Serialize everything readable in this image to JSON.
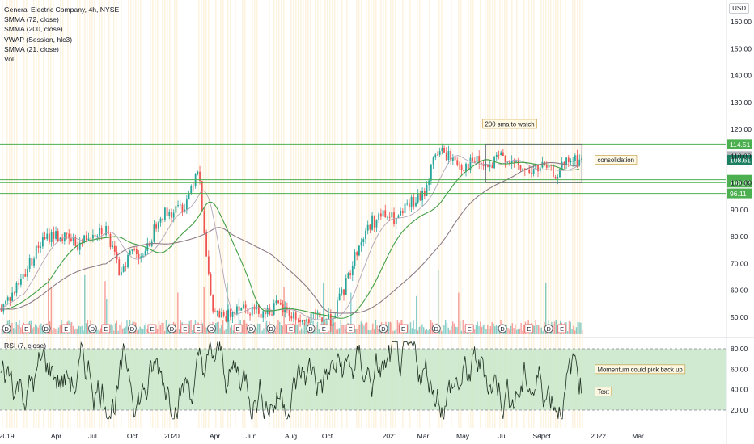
{
  "header": {
    "legend": [
      "General Electric Company, 4h, NYSE",
      "SMMA (72, close)",
      "SMMA (200, close)",
      "VWAP (Session, hlc3)",
      "SMMA (21, close)",
      "Vol"
    ],
    "rsi_label": "RSI (7, close)",
    "currency": "USD"
  },
  "colors": {
    "up": "#26a69a",
    "down": "#ef5350",
    "smma72": "#43a047",
    "smma200": "#8d7b86",
    "vwap": "#b2a4b8",
    "level": "#4caf50",
    "rsi_line": "#1b2e1d",
    "rsi_band": "#c8e6c9",
    "bar_tint": "#fbe9c9"
  },
  "chart_data": {
    "type": "candlestick",
    "symbol": "General Electric Company",
    "interval": "4h",
    "exchange": "NYSE",
    "x_ticks": [
      "2019",
      "Apr",
      "Jul",
      "Oct",
      "2020",
      "Apr",
      "Jun",
      "Aug",
      "Oct",
      "2021",
      "Mar",
      "May",
      "Jul",
      "Sep",
      "Oct",
      "2022",
      "Mar"
    ],
    "y_ticks": [
      "160.00",
      "150.00",
      "140.00",
      "130.00",
      "120.00",
      "110.00",
      "100.00",
      "90.00",
      "80.00",
      "70.00",
      "60.00",
      "50.00"
    ],
    "y_range": [
      46,
      163
    ],
    "price_path": [
      {
        "x": 0,
        "y": 53
      },
      {
        "x": 0.02,
        "y": 59
      },
      {
        "x": 0.04,
        "y": 68
      },
      {
        "x": 0.06,
        "y": 77
      },
      {
        "x": 0.08,
        "y": 81
      },
      {
        "x": 0.1,
        "y": 79
      },
      {
        "x": 0.12,
        "y": 77
      },
      {
        "x": 0.14,
        "y": 82
      },
      {
        "x": 0.16,
        "y": 83
      },
      {
        "x": 0.18,
        "y": 67
      },
      {
        "x": 0.2,
        "y": 75
      },
      {
        "x": 0.22,
        "y": 73
      },
      {
        "x": 0.24,
        "y": 88
      },
      {
        "x": 0.26,
        "y": 89
      },
      {
        "x": 0.28,
        "y": 92
      },
      {
        "x": 0.3,
        "y": 107
      },
      {
        "x": 0.32,
        "y": 53
      },
      {
        "x": 0.34,
        "y": 49
      },
      {
        "x": 0.36,
        "y": 55
      },
      {
        "x": 0.38,
        "y": 53
      },
      {
        "x": 0.4,
        "y": 52
      },
      {
        "x": 0.42,
        "y": 54
      },
      {
        "x": 0.44,
        "y": 51
      },
      {
        "x": 0.46,
        "y": 48
      },
      {
        "x": 0.48,
        "y": 50
      },
      {
        "x": 0.5,
        "y": 49
      },
      {
        "x": 0.52,
        "y": 60
      },
      {
        "x": 0.54,
        "y": 75
      },
      {
        "x": 0.56,
        "y": 85
      },
      {
        "x": 0.58,
        "y": 88
      },
      {
        "x": 0.6,
        "y": 86
      },
      {
        "x": 0.62,
        "y": 92
      },
      {
        "x": 0.64,
        "y": 95
      },
      {
        "x": 0.66,
        "y": 112
      },
      {
        "x": 0.68,
        "y": 110
      },
      {
        "x": 0.7,
        "y": 106
      },
      {
        "x": 0.72,
        "y": 108
      },
      {
        "x": 0.74,
        "y": 105
      },
      {
        "x": 0.76,
        "y": 111
      },
      {
        "x": 0.78,
        "y": 106
      },
      {
        "x": 0.8,
        "y": 104
      },
      {
        "x": 0.82,
        "y": 106
      },
      {
        "x": 0.84,
        "y": 103
      },
      {
        "x": 0.86,
        "y": 108
      },
      {
        "x": 0.88,
        "y": 108.61
      }
    ],
    "horizontal_levels": [
      {
        "value": 114.51,
        "label": "114.51"
      },
      {
        "value": 101.19,
        "label": "101.19"
      },
      {
        "value": 100.12,
        "label": "100.12"
      },
      {
        "value": 96.11,
        "label": "96.11"
      }
    ],
    "last_price": {
      "value": 108.61,
      "label": "108.61"
    },
    "hidden_price_label": "110.00",
    "annotations": [
      {
        "text": "200 sma to watch",
        "x": 0.73,
        "y": 122
      },
      {
        "text": "consolidation",
        "x": 0.9,
        "y": 108.6
      }
    ],
    "event_markers": [
      {
        "x": 0.01,
        "t": "D"
      },
      {
        "x": 0.04,
        "t": "E"
      },
      {
        "x": 0.07,
        "t": "D"
      },
      {
        "x": 0.1,
        "t": "E"
      },
      {
        "x": 0.14,
        "t": "D"
      },
      {
        "x": 0.16,
        "t": "E"
      },
      {
        "x": 0.2,
        "t": "D"
      },
      {
        "x": 0.23,
        "t": "E"
      },
      {
        "x": 0.26,
        "t": "D"
      },
      {
        "x": 0.28,
        "t": "E"
      },
      {
        "x": 0.3,
        "t": "E"
      },
      {
        "x": 0.32,
        "t": "D"
      },
      {
        "x": 0.36,
        "t": "E"
      },
      {
        "x": 0.38,
        "t": "D"
      },
      {
        "x": 0.41,
        "t": "D"
      },
      {
        "x": 0.44,
        "t": "E"
      },
      {
        "x": 0.47,
        "t": "D"
      },
      {
        "x": 0.49,
        "t": "E"
      },
      {
        "x": 0.53,
        "t": "E"
      },
      {
        "x": 0.58,
        "t": "D"
      },
      {
        "x": 0.61,
        "t": "E"
      },
      {
        "x": 0.66,
        "t": "D"
      },
      {
        "x": 0.71,
        "t": "E"
      },
      {
        "x": 0.76,
        "t": "D"
      },
      {
        "x": 0.8,
        "t": "E"
      },
      {
        "x": 0.83,
        "t": "D"
      },
      {
        "x": 0.85,
        "t": "E"
      }
    ],
    "rsi": {
      "period": 7,
      "band": [
        20,
        80
      ],
      "y_ticks": [
        "80.00",
        "60.00",
        "40.00",
        "20.00"
      ],
      "annotations": [
        {
          "text": "Momentum could pick back up",
          "x": 0.9,
          "y": 60
        },
        {
          "text": "Text",
          "x": 0.9,
          "y": 38
        }
      ]
    }
  }
}
